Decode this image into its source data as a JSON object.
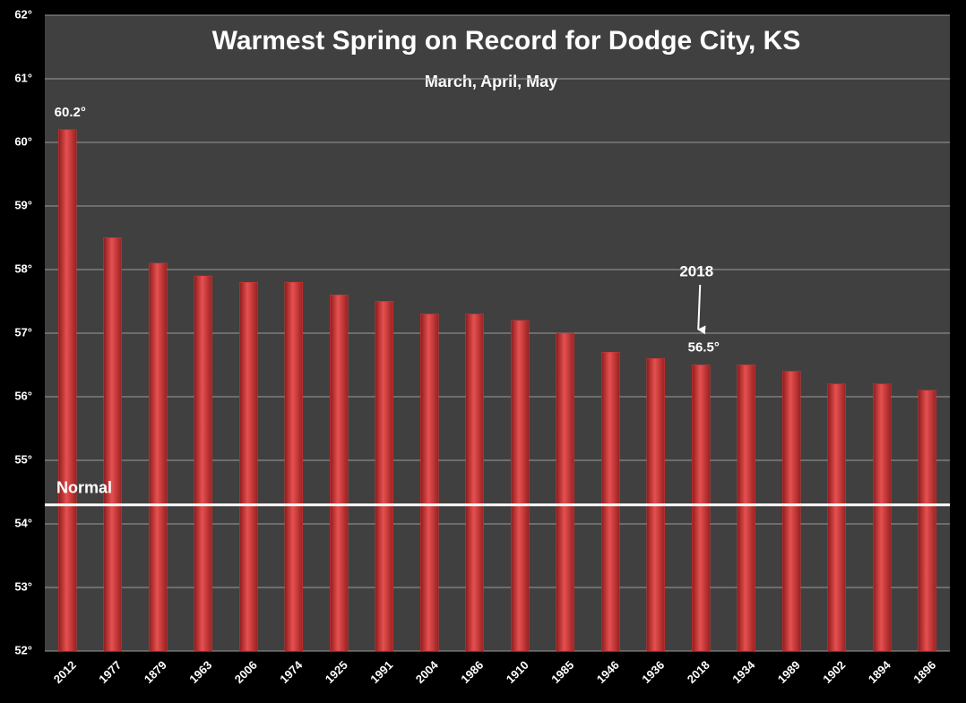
{
  "chart_data": {
    "type": "bar",
    "title": "Warmest Spring on Record for Dodge City, KS",
    "subtitle": "March, April, May",
    "categories": [
      "2012",
      "1977",
      "1879",
      "1963",
      "2006",
      "1974",
      "1925",
      "1991",
      "2004",
      "1986",
      "1910",
      "1985",
      "1946",
      "1936",
      "2018",
      "1934",
      "1989",
      "1902",
      "1894",
      "1896"
    ],
    "values": [
      60.2,
      58.5,
      58.1,
      57.9,
      57.8,
      57.8,
      57.6,
      57.5,
      57.3,
      57.3,
      57.2,
      57.0,
      56.7,
      56.6,
      56.5,
      56.5,
      56.4,
      56.2,
      56.2,
      56.1
    ],
    "value_labels": [
      "60.2°",
      null,
      null,
      null,
      null,
      null,
      null,
      null,
      null,
      null,
      null,
      null,
      null,
      null,
      "56.5°",
      null,
      null,
      null,
      null,
      null
    ],
    "color": "#d23a3a",
    "ylim": [
      52,
      62
    ],
    "yticks": [
      {
        "value": 52,
        "label": "52°"
      },
      {
        "value": 53,
        "label": "53°"
      },
      {
        "value": 54,
        "label": "54°"
      },
      {
        "value": 55,
        "label": "55°"
      },
      {
        "value": 56,
        "label": "56°"
      },
      {
        "value": 57,
        "label": "57°"
      },
      {
        "value": 58,
        "label": "58°"
      },
      {
        "value": 59,
        "label": "59°"
      },
      {
        "value": 60,
        "label": "60°"
      },
      {
        "value": 61,
        "label": "61°"
      },
      {
        "value": 62,
        "label": "62°"
      }
    ],
    "grid": true,
    "reference_line": {
      "label": "Normal",
      "value": 54.3,
      "color": "#ffffff"
    },
    "annotation": "2018"
  }
}
